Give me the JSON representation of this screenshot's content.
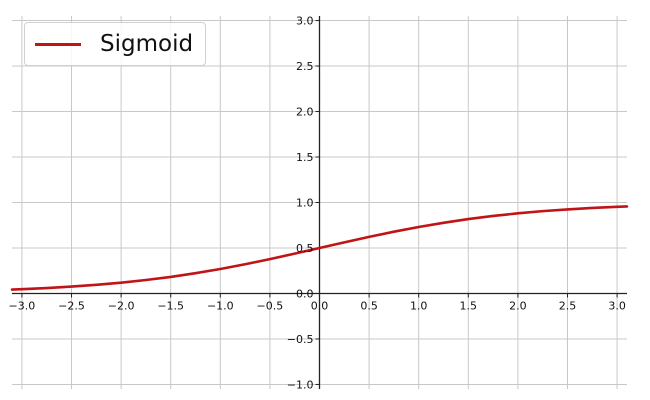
{
  "chart_data": {
    "type": "line",
    "xlim": [
      -3.1,
      3.1
    ],
    "ylim": [
      -1.05,
      3.05
    ],
    "grid": true,
    "legend_position": "top-left",
    "x_ticks": [
      -3.0,
      -2.5,
      -2.0,
      -1.5,
      -1.0,
      -0.5,
      0.0,
      0.5,
      1.0,
      1.5,
      2.0,
      2.5,
      3.0
    ],
    "y_ticks": [
      -1.0,
      -0.5,
      0.0,
      0.5,
      1.0,
      1.5,
      2.0,
      2.5,
      3.0
    ],
    "x_tick_labels": [
      "−3.0",
      "−2.5",
      "−2.0",
      "−1.5",
      "−1.0",
      "−0.5",
      "0.0",
      "0.5",
      "1.0",
      "1.5",
      "2.0",
      "2.5",
      "3.0"
    ],
    "y_tick_labels": [
      "−1.0",
      "−0.5",
      "0.0",
      "0.5",
      "1.0",
      "1.5",
      "2.0",
      "2.5",
      "3.0"
    ],
    "series": [
      {
        "name": "Sigmoid",
        "color": "#c01417",
        "x": [
          -3.1,
          -3.0,
          -2.75,
          -2.5,
          -2.25,
          -2.0,
          -1.75,
          -1.5,
          -1.25,
          -1.0,
          -0.75,
          -0.5,
          -0.25,
          0.0,
          0.25,
          0.5,
          0.75,
          1.0,
          1.25,
          1.5,
          1.75,
          2.0,
          2.25,
          2.5,
          2.75,
          3.0,
          3.1
        ],
        "y": [
          0.043,
          0.047,
          0.06,
          0.076,
          0.095,
          0.119,
          0.148,
          0.182,
          0.223,
          0.269,
          0.321,
          0.378,
          0.438,
          0.5,
          0.562,
          0.622,
          0.679,
          0.731,
          0.777,
          0.818,
          0.852,
          0.881,
          0.905,
          0.924,
          0.94,
          0.953,
          0.957
        ]
      }
    ]
  },
  "colors": {
    "grid": "#c8c8c8",
    "axis": "#222222",
    "line": "#c01417"
  }
}
